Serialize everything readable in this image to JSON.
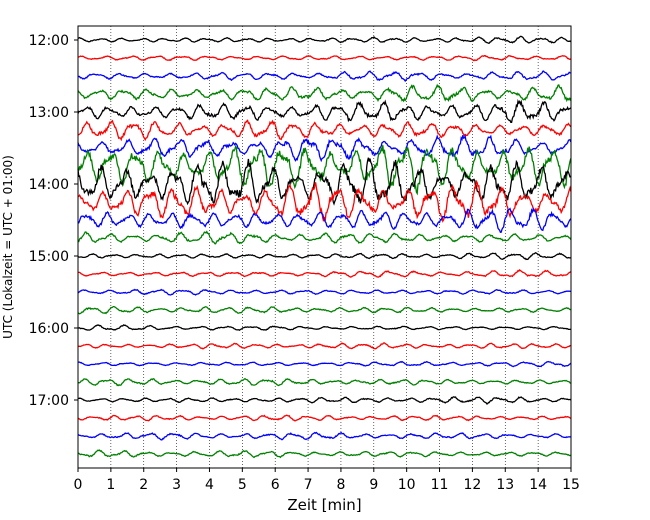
{
  "chart_data": {
    "type": "line",
    "title": "",
    "xlabel": "Zeit  [min]",
    "ylabel": "UTC (Lokalzeit = UTC + 01:00)",
    "xlim": [
      0,
      15
    ],
    "x_ticks": [
      "0",
      "1",
      "2",
      "3",
      "4",
      "5",
      "6",
      "7",
      "8",
      "9",
      "10",
      "11",
      "12",
      "13",
      "14",
      "15"
    ],
    "y_ticks": [
      "12:00",
      "13:00",
      "14:00",
      "15:00",
      "16:00",
      "17:00"
    ],
    "trace_interval_minutes": 15,
    "first_trace": "12:00",
    "last_trace": "17:45",
    "grid": "vertical dotted",
    "color_cycle": [
      "#000000",
      "#ff0000",
      "#0000ff",
      "#008000"
    ],
    "traces": [
      {
        "start": "12:00",
        "color": "#000000",
        "relative_amplitude": 0.15
      },
      {
        "start": "12:15",
        "color": "#ff0000",
        "relative_amplitude": 0.15
      },
      {
        "start": "12:30",
        "color": "#0000ff",
        "relative_amplitude": 0.2
      },
      {
        "start": "12:45",
        "color": "#008000",
        "relative_amplitude": 0.35
      },
      {
        "start": "13:00",
        "color": "#000000",
        "relative_amplitude": 0.45
      },
      {
        "start": "13:15",
        "color": "#ff0000",
        "relative_amplitude": 0.4
      },
      {
        "start": "13:30",
        "color": "#0000ff",
        "relative_amplitude": 0.5
      },
      {
        "start": "13:45",
        "color": "#008000",
        "relative_amplitude": 1.0
      },
      {
        "start": "14:00",
        "color": "#000000",
        "relative_amplitude": 1.0
      },
      {
        "start": "14:15",
        "color": "#ff0000",
        "relative_amplitude": 0.8
      },
      {
        "start": "14:30",
        "color": "#0000ff",
        "relative_amplitude": 0.55
      },
      {
        "start": "14:45",
        "color": "#008000",
        "relative_amplitude": 0.25
      },
      {
        "start": "15:00",
        "color": "#000000",
        "relative_amplitude": 0.15
      },
      {
        "start": "15:15",
        "color": "#ff0000",
        "relative_amplitude": 0.15
      },
      {
        "start": "15:30",
        "color": "#0000ff",
        "relative_amplitude": 0.15
      },
      {
        "start": "15:45",
        "color": "#008000",
        "relative_amplitude": 0.15
      },
      {
        "start": "16:00",
        "color": "#000000",
        "relative_amplitude": 0.12
      },
      {
        "start": "16:15",
        "color": "#ff0000",
        "relative_amplitude": 0.12
      },
      {
        "start": "16:30",
        "color": "#0000ff",
        "relative_amplitude": 0.12
      },
      {
        "start": "16:45",
        "color": "#008000",
        "relative_amplitude": 0.15
      },
      {
        "start": "17:00",
        "color": "#000000",
        "relative_amplitude": 0.15
      },
      {
        "start": "17:15",
        "color": "#ff0000",
        "relative_amplitude": 0.12
      },
      {
        "start": "17:30",
        "color": "#0000ff",
        "relative_amplitude": 0.15
      },
      {
        "start": "17:45",
        "color": "#008000",
        "relative_amplitude": 0.15
      }
    ]
  }
}
